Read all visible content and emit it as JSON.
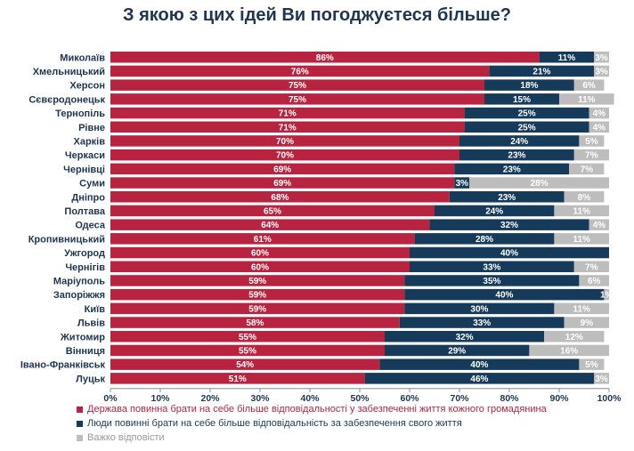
{
  "title": "З якою з цих ідей Ви погоджуєтеся більше?",
  "colors": {
    "state": "#b8243f",
    "people": "#163a5a",
    "hard": "#bdbdbd"
  },
  "chart_data": {
    "type": "bar",
    "orientation": "horizontal",
    "stacked": true,
    "categories": [
      "Миколаїв",
      "Хмельницький",
      "Херсон",
      "Сєвєродонецьк",
      "Тернопіль",
      "Рівне",
      "Харків",
      "Черкаси",
      "Чернівці",
      "Суми",
      "Дніпро",
      "Полтава",
      "Одеса",
      "Кропивницький",
      "Ужгород",
      "Чернігів",
      "Маріуполь",
      "Запоріжжя",
      "Київ",
      "Львів",
      "Житомир",
      "Вінниця",
      "Івано-Франківськ",
      "Луцьк"
    ],
    "series": [
      {
        "name": "Держава повинна брати на себе більше відповідальності у забезпеченні життя кожного громадянина",
        "color": "#b8243f",
        "values": [
          86,
          76,
          75,
          75,
          71,
          71,
          70,
          70,
          69,
          69,
          68,
          65,
          64,
          61,
          60,
          60,
          59,
          59,
          59,
          58,
          55,
          55,
          54,
          51
        ]
      },
      {
        "name": "Люди повинні брати на себе більше відповідальність за забезпечення свого життя",
        "color": "#163a5a",
        "values": [
          11,
          21,
          18,
          15,
          25,
          25,
          24,
          23,
          23,
          3,
          23,
          24,
          32,
          28,
          40,
          33,
          35,
          40,
          30,
          33,
          32,
          29,
          40,
          46
        ]
      },
      {
        "name": "Важко відповісти",
        "color": "#bdbdbd",
        "values": [
          3,
          3,
          6,
          11,
          4,
          4,
          5,
          7,
          7,
          28,
          8,
          11,
          4,
          11,
          0,
          7,
          6,
          1,
          11,
          9,
          12,
          16,
          5,
          3
        ]
      }
    ],
    "x_ticks": [
      "0%",
      "10%",
      "20%",
      "30%",
      "40%",
      "50%",
      "60%",
      "70%",
      "80%",
      "90%",
      "100%"
    ],
    "xlim": [
      0,
      100
    ],
    "legend_position": "bottom"
  }
}
